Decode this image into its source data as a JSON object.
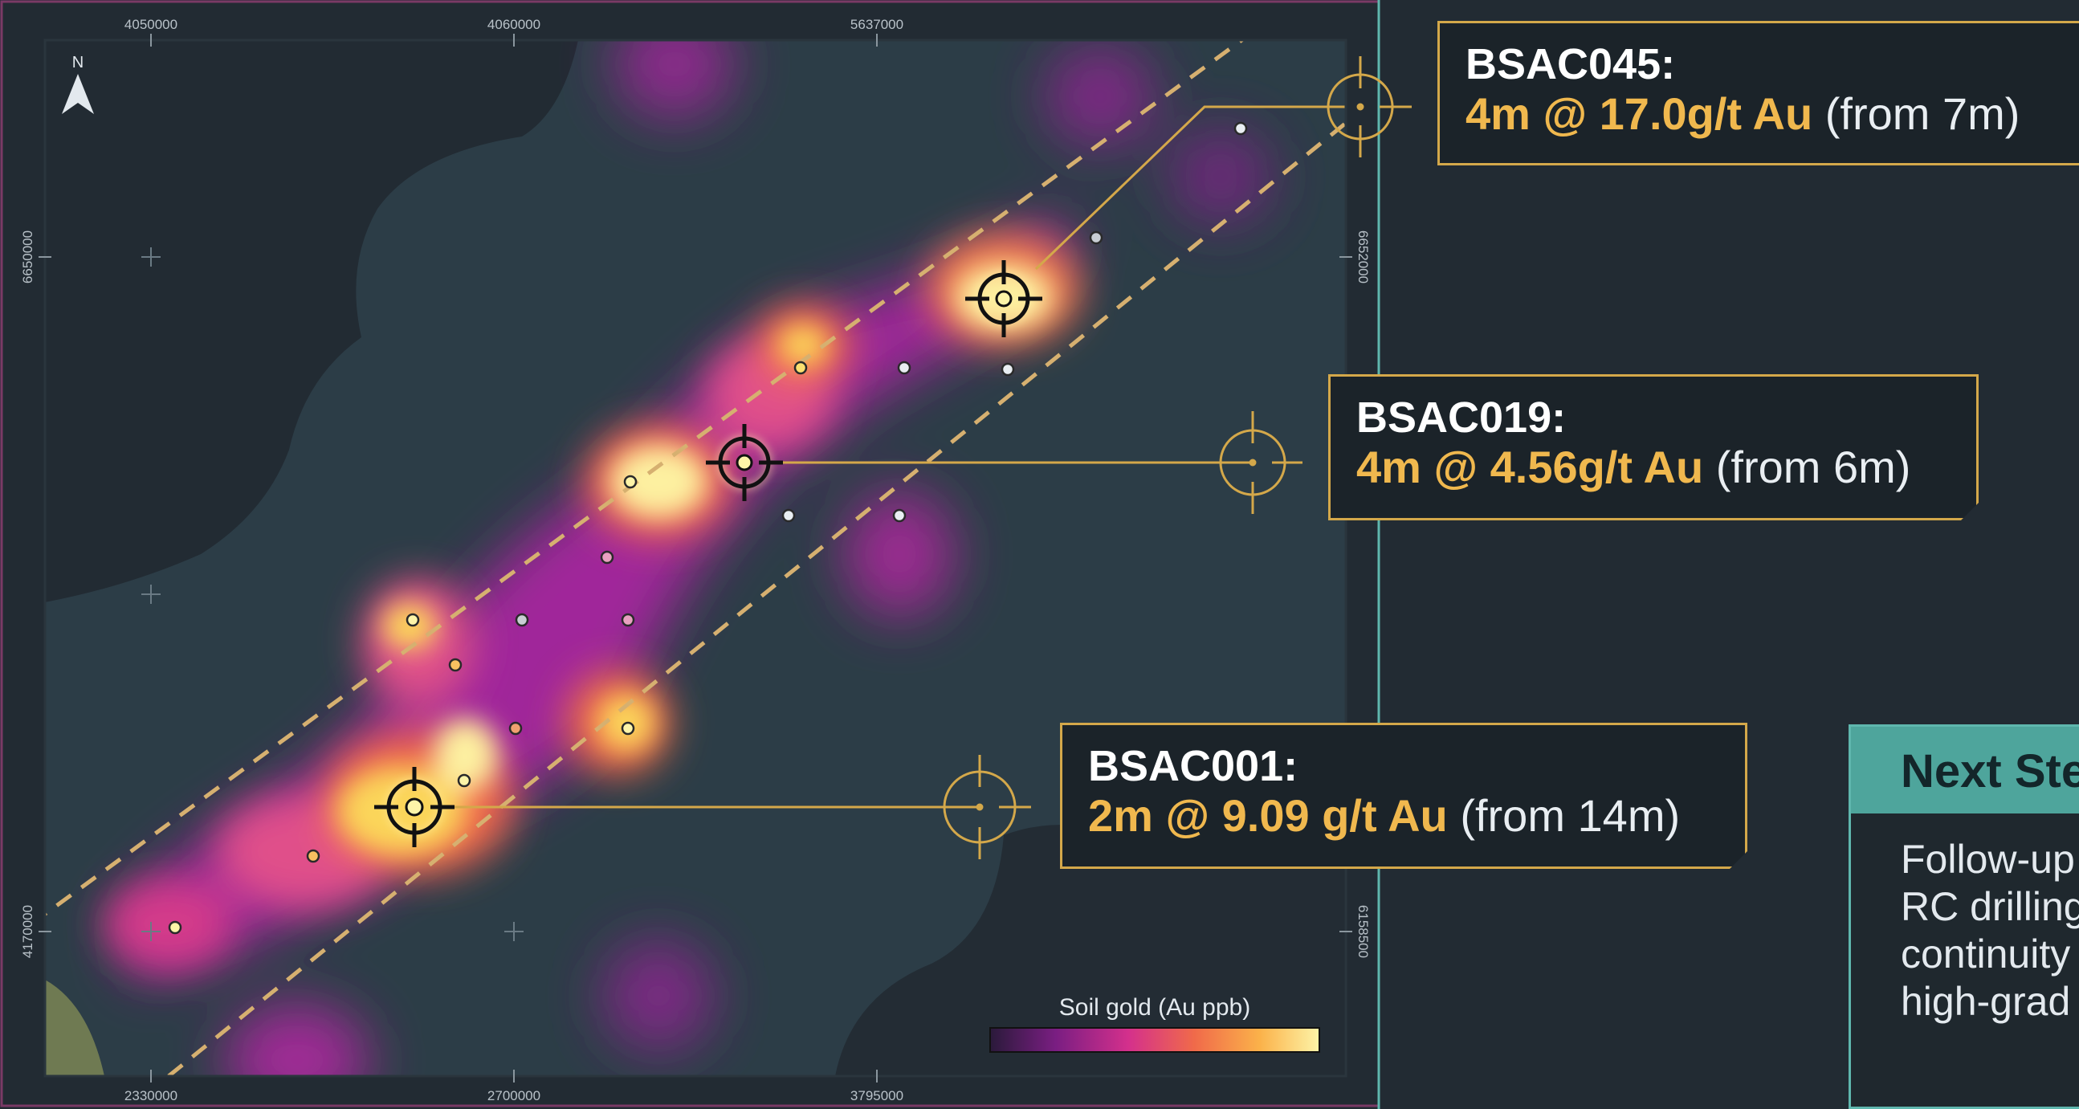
{
  "map": {
    "north_label": "N",
    "coords_top": [
      "4050000",
      "4060000",
      "5637000"
    ],
    "coords_bottom": [
      "2330000",
      "2700000",
      "3795000"
    ],
    "coords_left": [
      "6650000",
      "4170000"
    ],
    "coords_right": [
      "6652000",
      "6158500"
    ],
    "legend": {
      "title": "Soil gold (Au ppb)",
      "colors": [
        "#2a1a3a",
        "#7a1e82",
        "#d4308c",
        "#f06a4a",
        "#fbb24a",
        "#fdf4a8"
      ]
    }
  },
  "callouts": [
    {
      "hole_id": "BSAC045:",
      "grade": "4m @ 17.0g/t Au",
      "from": " (from 7m)"
    },
    {
      "hole_id": "BSAC019:",
      "grade": "4m @ 4.56g/t Au",
      "from": " (from 6m)"
    },
    {
      "hole_id": "BSAC001:",
      "grade": "2m @ 9.09 g/t Au",
      "from": " (from 14m)"
    }
  ],
  "next_steps": {
    "heading": "Next Ste",
    "lines": [
      "Follow-up",
      "RC drilling",
      "continuity",
      "high-grad"
    ]
  },
  "colors": {
    "accent_gold": "#d4a84a",
    "accent_teal": "#5fb7ae",
    "background": "#222b33"
  }
}
